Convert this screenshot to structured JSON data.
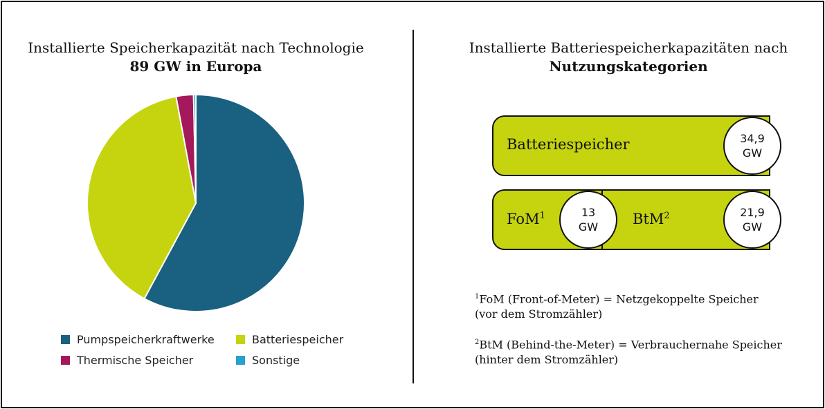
{
  "chart_data": [
    {
      "type": "pie",
      "title": "Installierte Speicherkapazität nach Technologie",
      "subtitle": "89 GW in Europa",
      "categories": [
        "Pumpspeicherkraftwerke",
        "Batteriespeicher",
        "Thermische Speicher",
        "Sonstige"
      ],
      "values": [
        51.5,
        34.9,
        2.3,
        0.3
      ],
      "unit": "GW",
      "colors": [
        "#1a6080",
        "#c5d40e",
        "#a3195b",
        "#2aa0d0"
      ],
      "legend_position": "bottom"
    },
    {
      "type": "table",
      "title": "Installierte Batteriespeicherkapazitäten nach",
      "title_bold": "Nutzungskategorien",
      "rows": [
        {
          "label": "Batteriespeicher",
          "value": "34,9",
          "unit": "GW"
        },
        {
          "label": "FoM",
          "sup": "1",
          "value": "13",
          "unit": "GW"
        },
        {
          "label": "BtM",
          "sup": "2",
          "value": "21,9",
          "unit": "GW"
        }
      ]
    }
  ],
  "footnotes": [
    {
      "sup": "1",
      "line1": "FoM (Front-of-Meter) = Netzgekoppelte Speicher",
      "line2": "(vor dem Stromzähler)"
    },
    {
      "sup": "2",
      "line1": "BtM (Behind-the-Meter) = Verbrauchernahe Speicher",
      "line2": "(hinter dem Stromzähler)"
    }
  ]
}
